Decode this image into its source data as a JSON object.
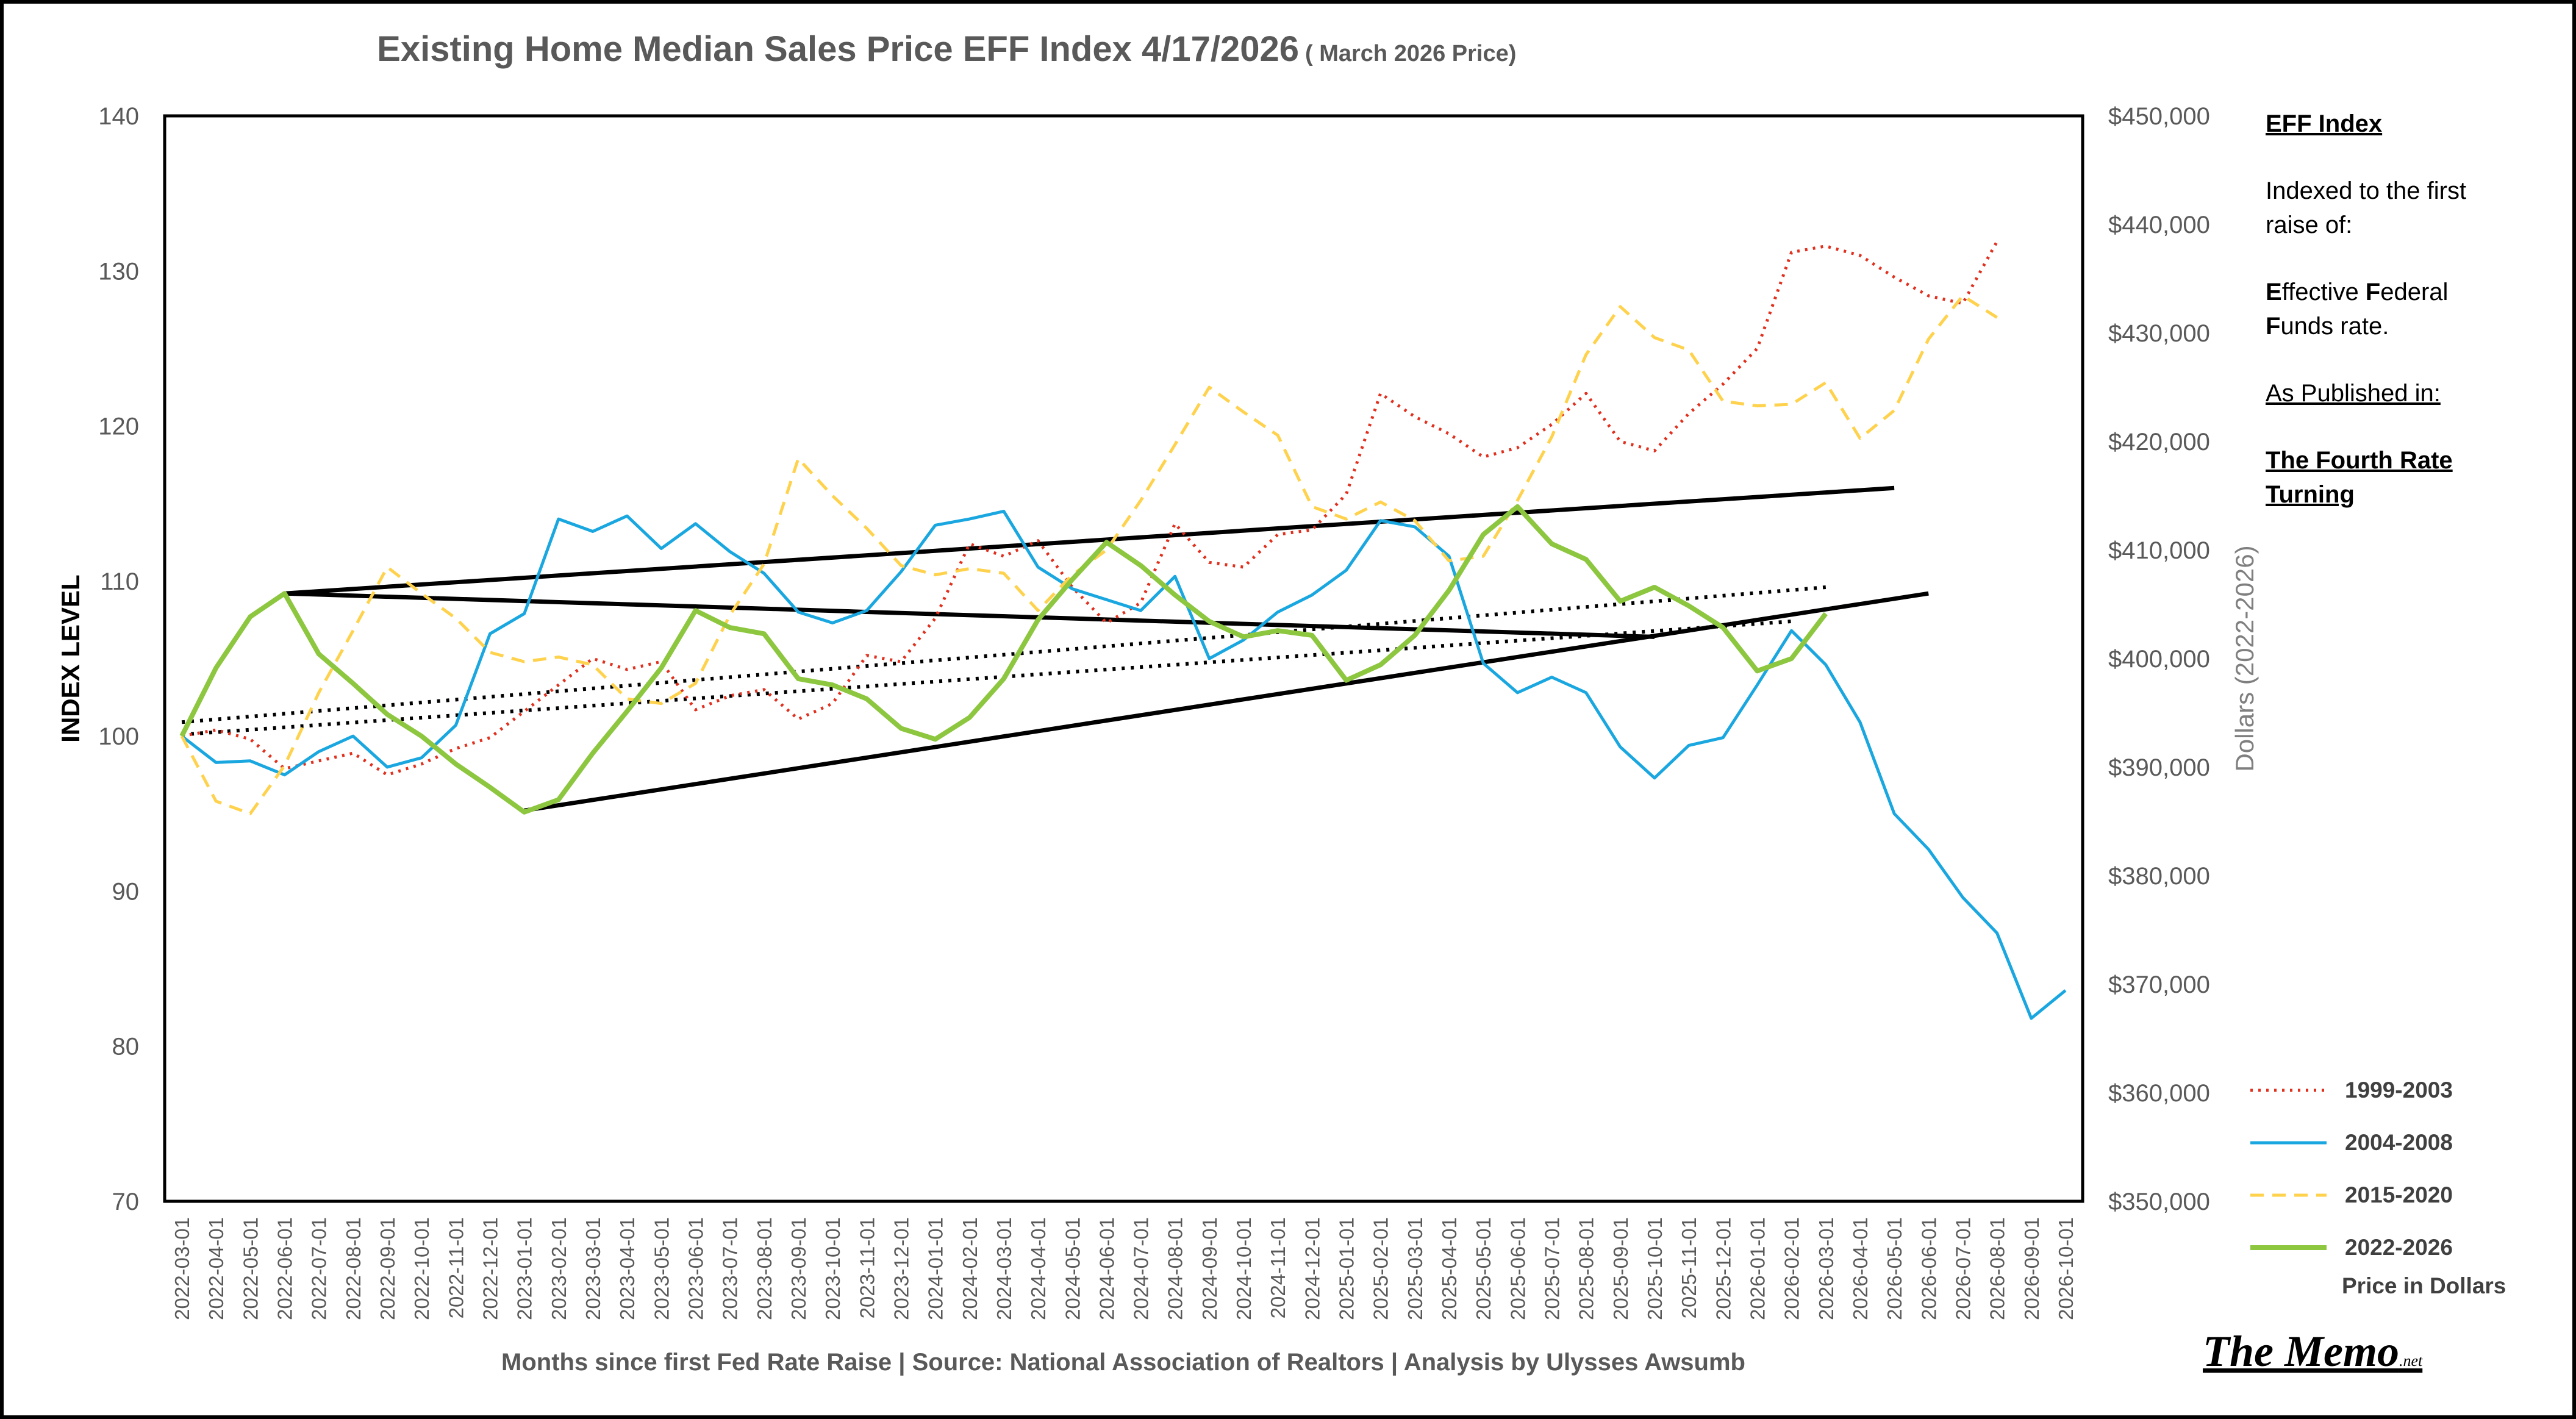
{
  "notes": {
    "heading": "EFF Index",
    "line1": "Indexed to the first raise of:",
    "eff_e": "E",
    "eff_e_rest": "ffective ",
    "eff_f": "F",
    "eff_f_rest": "ederal",
    "funds_f": "F",
    "funds_rest": "unds rate.",
    "published": "As Published in:",
    "book": "The Fourth Rate Turning"
  },
  "price_label": "Price in Dollars",
  "logo": {
    "main": "The Memo",
    "suffix": ".net"
  },
  "colors": {
    "s1999": "#e0301e",
    "s2004": "#1aa7e0",
    "s2015": "#ffd24d",
    "s2022": "#8dc63f",
    "trend": "#000000"
  },
  "chart_data": {
    "type": "line",
    "title": "Existing Home Median Sales Price EFF Index 4/17/2026",
    "subtitle": "( March 2026 Price)",
    "ylabel": "INDEX LEVEL",
    "y2label": "Dollars (2022-2026)",
    "xlabel": "Months since first Fed Rate Raise  |  Source: National Association of Realtors  |  Analysis by Ulysses Awsumb",
    "ylim": [
      70,
      140
    ],
    "y2lim": [
      350000,
      450000
    ],
    "yticks": [
      "70",
      "80",
      "90",
      "100",
      "110",
      "120",
      "130",
      "140"
    ],
    "y2ticks": [
      "$350,000",
      "$360,000",
      "$370,000",
      "$380,000",
      "$390,000",
      "$400,000",
      "$410,000",
      "$420,000",
      "$430,000",
      "$440,000",
      "$450,000"
    ],
    "legend_position": "bottom-right",
    "grid": false,
    "categories": [
      "2022-03-01",
      "2022-04-01",
      "2022-05-01",
      "2022-06-01",
      "2022-07-01",
      "2022-08-01",
      "2022-09-01",
      "2022-10-01",
      "2022-11-01",
      "2022-12-01",
      "2023-01-01",
      "2023-02-01",
      "2023-03-01",
      "2023-04-01",
      "2023-05-01",
      "2023-06-01",
      "2023-07-01",
      "2023-08-01",
      "2023-09-01",
      "2023-10-01",
      "2023-11-01",
      "2023-12-01",
      "2024-01-01",
      "2024-02-01",
      "2024-03-01",
      "2024-04-01",
      "2024-05-01",
      "2024-06-01",
      "2024-07-01",
      "2024-08-01",
      "2024-09-01",
      "2024-10-01",
      "2024-11-01",
      "2024-12-01",
      "2025-01-01",
      "2025-02-01",
      "2025-03-01",
      "2025-04-01",
      "2025-05-01",
      "2025-06-01",
      "2025-07-01",
      "2025-08-01",
      "2025-09-01",
      "2025-10-01",
      "2025-11-01",
      "2025-12-01",
      "2026-01-01",
      "2026-02-01",
      "2026-03-01",
      "2026-04-01",
      "2026-05-01",
      "2026-06-01",
      "2026-07-01",
      "2026-08-01",
      "2026-09-01",
      "2026-10-01"
    ],
    "series": [
      {
        "name": "1999-2003",
        "style": "dotted",
        "colorKey": "s1999",
        "values": [
          100,
          100.4,
          99.8,
          97.9,
          98.4,
          98.9,
          97.5,
          98.2,
          99.2,
          99.9,
          101.6,
          103.3,
          105.0,
          104.3,
          104.8,
          101.7,
          102.6,
          103.0,
          101.1,
          102.1,
          105.2,
          104.8,
          107.6,
          112.4,
          111.6,
          112.6,
          109.6,
          107.3,
          108.6,
          113.7,
          111.2,
          110.9,
          113.0,
          113.3,
          115.6,
          122.1,
          120.6,
          119.5,
          118.0,
          118.6,
          120.1,
          122.1,
          119.0,
          118.4,
          120.8,
          122.7,
          125.0,
          131.2,
          131.6,
          131.0,
          129.6,
          128.4,
          127.9,
          131.9,
          null,
          null
        ]
      },
      {
        "name": "2004-2008",
        "style": "solid",
        "colorKey": "s2004",
        "values": [
          100,
          98.3,
          98.4,
          97.5,
          99.0,
          100.0,
          98.0,
          98.6,
          100.7,
          106.6,
          107.9,
          114.0,
          113.2,
          114.2,
          112.1,
          113.7,
          111.9,
          110.5,
          108.0,
          107.3,
          108.1,
          110.6,
          113.6,
          114.0,
          114.5,
          110.9,
          109.5,
          108.8,
          108.1,
          110.3,
          105.0,
          106.2,
          108.0,
          109.1,
          110.7,
          113.9,
          113.5,
          111.6,
          104.7,
          102.8,
          103.8,
          102.8,
          99.3,
          97.3,
          99.4,
          99.9,
          103.3,
          106.8,
          104.6,
          100.9,
          95.0,
          92.7,
          89.6,
          87.3,
          81.8,
          83.6
        ]
      },
      {
        "name": "2015-2020",
        "style": "dashed",
        "colorKey": "s2015",
        "values": [
          100,
          95.8,
          95.0,
          98.1,
          102.8,
          106.8,
          110.9,
          109.2,
          107.6,
          105.4,
          104.8,
          105.1,
          104.6,
          102.4,
          102.1,
          103.4,
          107.8,
          111.1,
          117.9,
          115.5,
          113.4,
          111.0,
          110.4,
          110.8,
          110.5,
          108.1,
          110.4,
          112.0,
          115.2,
          118.8,
          122.5,
          120.9,
          119.4,
          114.8,
          114.0,
          115.1,
          113.9,
          111.3,
          111.6,
          115.2,
          119.3,
          124.6,
          127.7,
          125.7,
          124.9,
          121.6,
          121.3,
          121.4,
          122.8,
          119.2,
          121.0,
          125.6,
          128.4,
          127.0,
          null,
          null
        ]
      },
      {
        "name": "2022-2026",
        "style": "solid",
        "colorKey": "s2022",
        "values": [
          100,
          104.4,
          107.7,
          109.2,
          105.3,
          103.4,
          101.4,
          100.0,
          98.2,
          96.7,
          95.1,
          95.9,
          98.9,
          101.6,
          104.4,
          108.1,
          107.0,
          106.6,
          103.7,
          103.3,
          102.4,
          100.5,
          99.8,
          101.2,
          103.7,
          107.5,
          110.1,
          112.5,
          111.0,
          109.1,
          107.4,
          106.4,
          106.8,
          106.5,
          103.6,
          104.6,
          106.5,
          109.4,
          113.0,
          114.8,
          112.4,
          111.4,
          108.7,
          109.6,
          108.4,
          107.0,
          104.2,
          105.0,
          107.9,
          null,
          null,
          null,
          null,
          null,
          null,
          null
        ]
      }
    ],
    "trendlines": [
      {
        "style": "solid",
        "from": [
          "2022-06-01",
          109.2
        ],
        "to": [
          "2026-05-01",
          116.0
        ]
      },
      {
        "style": "solid",
        "from": [
          "2022-06-01",
          109.2
        ],
        "to": [
          "2025-10-01",
          106.4
        ]
      },
      {
        "style": "solid",
        "from": [
          "2023-01-01",
          95.2
        ],
        "to": [
          "2026-06-01",
          109.2
        ]
      },
      {
        "style": "dotted",
        "from": [
          "2022-03-01",
          100.9
        ],
        "to": [
          "2026-03-01",
          109.6
        ]
      },
      {
        "style": "dotted",
        "from": [
          "2022-03-01",
          100.1
        ],
        "to": [
          "2026-02-01",
          107.4
        ]
      }
    ]
  }
}
